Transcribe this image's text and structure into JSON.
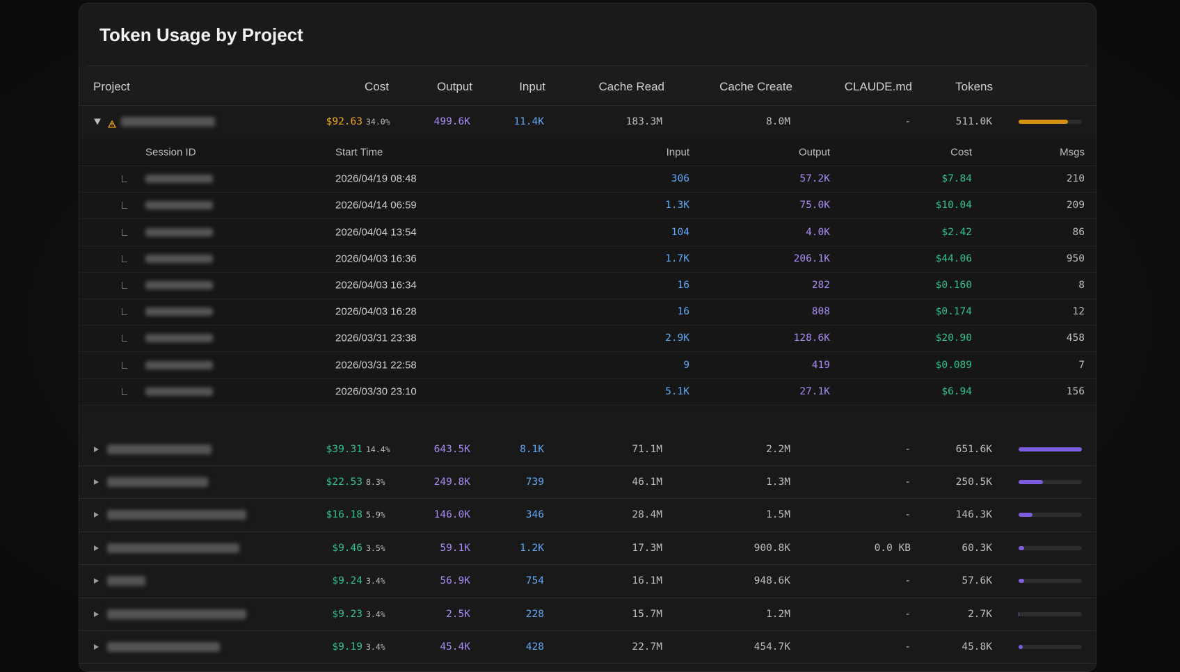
{
  "header": {
    "title": "Token Usage by Project"
  },
  "table": {
    "columns": [
      "Project",
      "Cost",
      "Output",
      "Input",
      "Cache Read",
      "Cache Create",
      "CLAUDE.md",
      "Tokens"
    ],
    "session_columns": [
      "Session ID",
      "Start Time",
      "Input",
      "Output",
      "Cost",
      "Msgs"
    ],
    "rows": [
      {
        "warning": true,
        "expanded": true,
        "bar_color": "#d4900f",
        "cost": "$92.63",
        "share": "34.0%",
        "output": "499.6K",
        "input": "11.4K",
        "cache_read": "183.3M",
        "cache_create": "8.0M",
        "claude_md": "-",
        "tokens": {
          "value": 511000,
          "label": "511.0K"
        },
        "sessions": [
          {
            "start": "2026/04/19 08:48",
            "input": "306",
            "output": "57.2K",
            "cost": "$7.84",
            "msgs": "210"
          },
          {
            "start": "2026/04/14 06:59",
            "input": "1.3K",
            "output": "75.0K",
            "cost": "$10.04",
            "msgs": "209"
          },
          {
            "start": "2026/04/04 13:54",
            "input": "104",
            "output": "4.0K",
            "cost": "$2.42",
            "msgs": "86"
          },
          {
            "start": "2026/04/03 16:36",
            "input": "1.7K",
            "output": "206.1K",
            "cost": "$44.06",
            "msgs": "950"
          },
          {
            "start": "2026/04/03 16:34",
            "input": "16",
            "output": "282",
            "cost": "$0.160",
            "msgs": "8"
          },
          {
            "start": "2026/04/03 16:28",
            "input": "16",
            "output": "808",
            "cost": "$0.174",
            "msgs": "12"
          },
          {
            "start": "2026/03/31 23:38",
            "input": "2.9K",
            "output": "128.6K",
            "cost": "$20.90",
            "msgs": "458"
          },
          {
            "start": "2026/03/31 22:58",
            "input": "9",
            "output": "419",
            "cost": "$0.089",
            "msgs": "7"
          },
          {
            "start": "2026/03/30 23:10",
            "input": "5.1K",
            "output": "27.1K",
            "cost": "$6.94",
            "msgs": "156"
          }
        ]
      },
      {
        "bar_color": "#7c5ce0",
        "cost": "$39.31",
        "share": "14.4%",
        "output": "643.5K",
        "input": "8.1K",
        "cache_read": "71.1M",
        "cache_create": "2.2M",
        "claude_md": "-",
        "tokens": {
          "value": 651600,
          "label": "651.6K"
        }
      },
      {
        "bar_color": "#7c5ce0",
        "cost": "$22.53",
        "share": "8.3%",
        "output": "249.8K",
        "input": "739",
        "cache_read": "46.1M",
        "cache_create": "1.3M",
        "claude_md": "-",
        "tokens": {
          "value": 250500,
          "label": "250.5K"
        }
      },
      {
        "bar_color": "#7c5ce0",
        "cost": "$16.18",
        "share": "5.9%",
        "output": "146.0K",
        "input": "346",
        "cache_read": "28.4M",
        "cache_create": "1.5M",
        "claude_md": "-",
        "tokens": {
          "value": 146300,
          "label": "146.3K"
        }
      },
      {
        "bar_color": "#7c5ce0",
        "cost": "$9.46",
        "share": "3.5%",
        "output": "59.1K",
        "input": "1.2K",
        "cache_read": "17.3M",
        "cache_create": "900.8K",
        "claude_md": "0.0 KB",
        "tokens": {
          "value": 60300,
          "label": "60.3K"
        }
      },
      {
        "bar_color": "#7c5ce0",
        "cost": "$9.24",
        "share": "3.4%",
        "output": "56.9K",
        "input": "754",
        "cache_read": "16.1M",
        "cache_create": "948.6K",
        "claude_md": "-",
        "tokens": {
          "value": 57600,
          "label": "57.6K"
        }
      },
      {
        "bar_color": "#7c5ce0",
        "cost": "$9.23",
        "share": "3.4%",
        "output": "2.5K",
        "input": "228",
        "cache_read": "15.7M",
        "cache_create": "1.2M",
        "claude_md": "-",
        "tokens": {
          "value": 2700,
          "label": "2.7K"
        }
      },
      {
        "bar_color": "#7c5ce0",
        "cost": "$9.19",
        "share": "3.4%",
        "output": "45.4K",
        "input": "428",
        "cache_read": "22.7M",
        "cache_create": "454.7K",
        "claude_md": "-",
        "tokens": {
          "value": 45800,
          "label": "45.8K"
        }
      }
    ]
  }
}
